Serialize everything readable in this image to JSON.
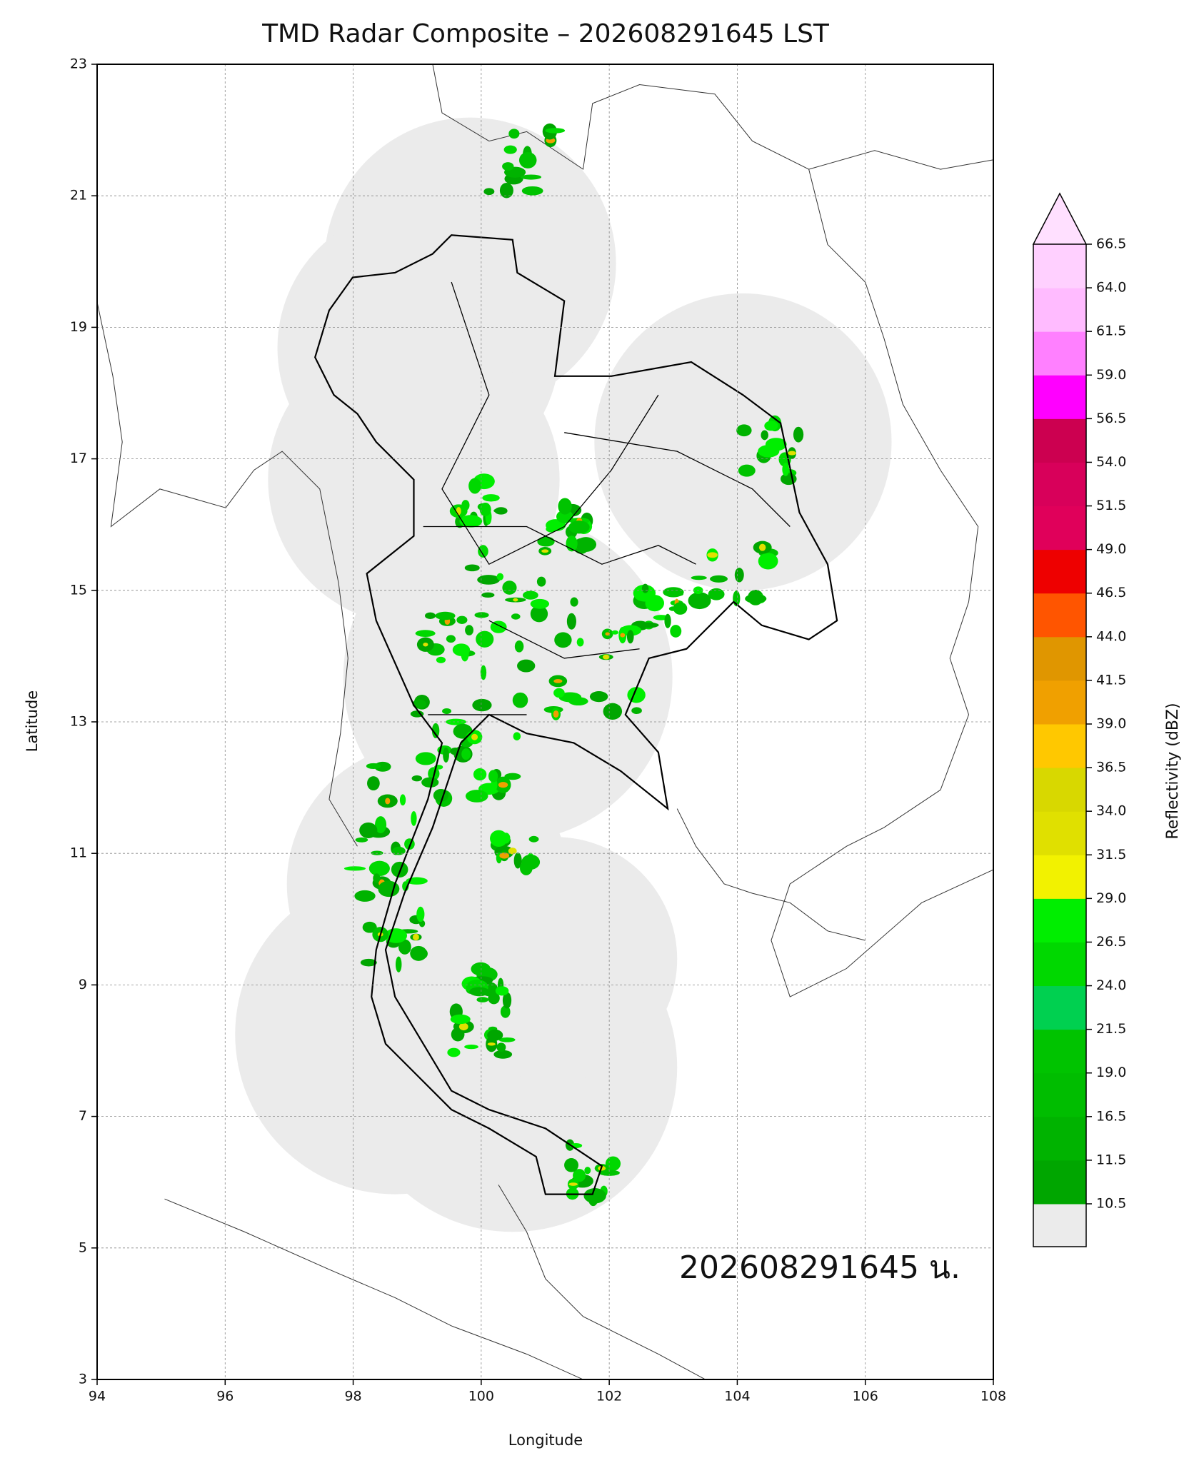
{
  "chart_data": {
    "type": "map",
    "title": "TMD Radar Composite – 202608291645 LST",
    "xlabel": "Longitude",
    "ylabel": "Latitude",
    "xlim": [
      94,
      108
    ],
    "ylim": [
      3,
      23
    ],
    "xticks": [
      94,
      96,
      98,
      100,
      102,
      104,
      106,
      108
    ],
    "yticks": [
      3,
      5,
      7,
      9,
      11,
      13,
      15,
      17,
      19,
      21,
      23
    ],
    "grid": true,
    "annotation": "202608291645 น.",
    "colorbar": {
      "label": "Reflectivity (dBZ)",
      "ticks": [
        10.5,
        11.5,
        16.5,
        {
          "value": 19,
          "label": "19.0"
        },
        21.5,
        {
          "value": 24,
          "label": "24.0"
        },
        26.5,
        {
          "value": 29,
          "label": "29.0"
        },
        31.5,
        {
          "value": 34,
          "label": "34.0"
        },
        36.5,
        {
          "value": 39,
          "label": "39.0"
        },
        41.5,
        {
          "value": 44,
          "label": "44.0"
        },
        46.5,
        {
          "value": 49,
          "label": "49.0"
        },
        51.5,
        {
          "value": 54,
          "label": "54.0"
        },
        56.5,
        {
          "value": 59,
          "label": "59.0"
        },
        61.5,
        {
          "value": 64,
          "label": "64.0"
        },
        66.5
      ],
      "colors": [
        "#00a600",
        "#00b300",
        "#00bd00",
        "#00c300",
        "#00d050",
        "#00d800",
        "#00ee00",
        "#f2f200",
        "#e0e000",
        "#d8d800",
        "#ffc800",
        "#f0a000",
        "#e09600",
        "#ff5500",
        "#ee0000",
        "#e0005a",
        "#d8005a",
        "#cc0050",
        "#ff00ff",
        "#ff80ff",
        "#ffbbff",
        "#ffd0ff"
      ],
      "under_color": "#ebebeb",
      "over_color": "#ffe0ff"
    }
  }
}
